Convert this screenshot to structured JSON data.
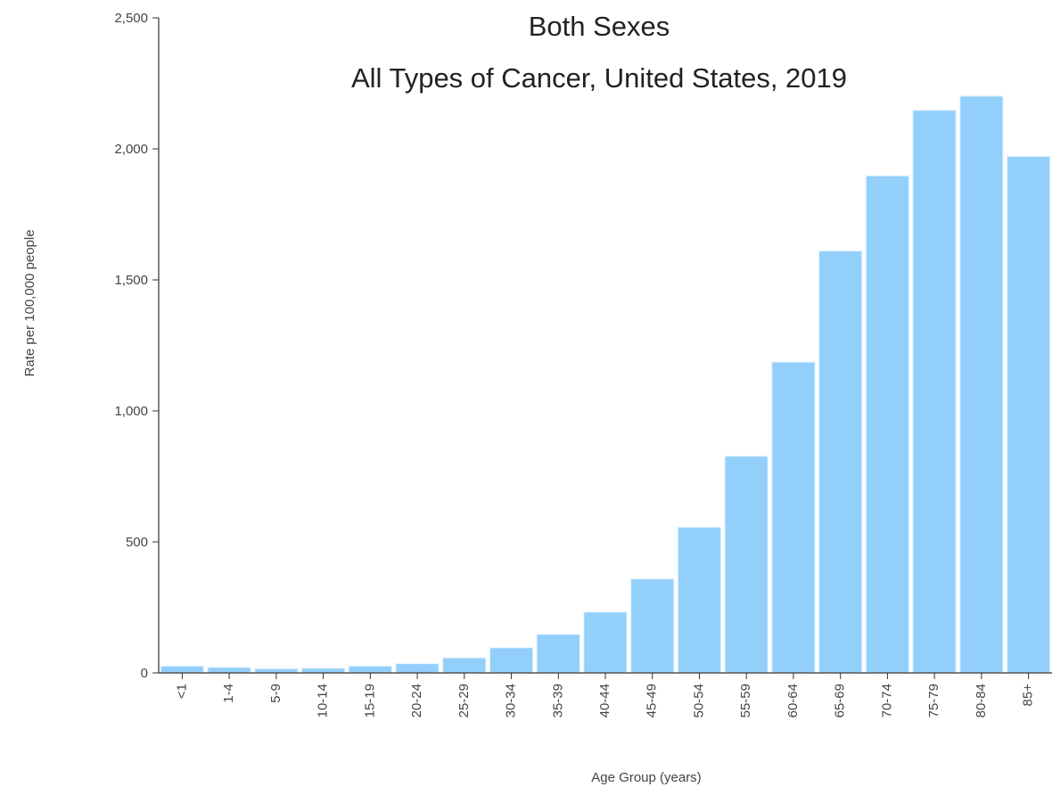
{
  "chart_data": {
    "type": "bar",
    "title_lines": [
      "Both Sexes",
      "All Types of Cancer, United States, 2019"
    ],
    "xlabel": "Age Group (years)",
    "ylabel": "Rate per 100,000 people",
    "ylim": [
      0,
      2500
    ],
    "yticks": [
      0,
      500,
      1000,
      1500,
      2000,
      2500
    ],
    "ytick_labels": [
      "0",
      "500",
      "1,000",
      "1,500",
      "2,000",
      "2,500"
    ],
    "categories": [
      "<1",
      "1-4",
      "5-9",
      "10-14",
      "15-19",
      "20-24",
      "25-29",
      "30-34",
      "35-39",
      "40-44",
      "45-49",
      "50-54",
      "55-59",
      "60-64",
      "65-69",
      "70-74",
      "75-79",
      "80-84",
      "85+"
    ],
    "values": [
      27,
      22,
      17,
      19,
      27,
      36,
      58,
      97,
      148,
      233,
      360,
      557,
      828,
      1187,
      1611,
      1898,
      2148,
      2202,
      1972
    ],
    "grid": false,
    "bar_color": "#92cffa"
  }
}
